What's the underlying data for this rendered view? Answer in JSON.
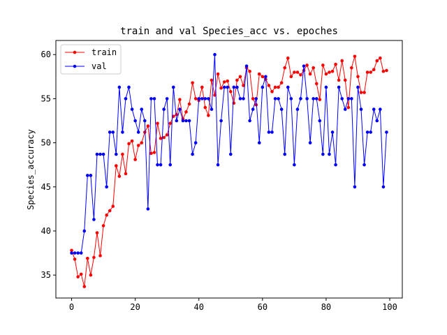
{
  "chart_data": {
    "type": "line",
    "title": "train and val Species_acc vs. epoches",
    "xlabel": "",
    "ylabel": "Species_accuracy",
    "xlim": [
      -4.95,
      103.95
    ],
    "ylim": [
      32.4,
      61.6
    ],
    "xticks": [
      0,
      20,
      40,
      60,
      80,
      100
    ],
    "yticks": [
      35,
      40,
      45,
      50,
      55,
      60
    ],
    "grid": false,
    "legend_position": "top-left",
    "series": [
      {
        "name": "train",
        "color": "#ff0000",
        "marker": "circle",
        "values": [
          37.8,
          36.8,
          34.8,
          35.1,
          33.7,
          36.9,
          35.0,
          37.0,
          39.8,
          37.2,
          40.6,
          41.8,
          42.3,
          42.8,
          47.4,
          46.2,
          48.7,
          46.5,
          49.9,
          50.2,
          48.1,
          49.7,
          50.0,
          51.2,
          51.9,
          48.8,
          48.9,
          52.2,
          50.5,
          50.6,
          50.9,
          52.2,
          53.0,
          53.2,
          54.9,
          52.7,
          53.5,
          54.4,
          56.8,
          55.0,
          54.8,
          56.3,
          54.0,
          53.1,
          57.1,
          55.4,
          57.8,
          56.2,
          56.9,
          57.0,
          55.8,
          54.5,
          57.1,
          57.5,
          56.5,
          58.5,
          58.1,
          55.0,
          54.3,
          57.8,
          57.5,
          57.2,
          56.5,
          55.8,
          56.3,
          56.3,
          56.8,
          58.5,
          59.6,
          57.5,
          58.0,
          58.0,
          57.7,
          58.2,
          58.8,
          57.8,
          58.5,
          56.7,
          54.9,
          58.8,
          57.8,
          58.0,
          58.1,
          58.9,
          57.1,
          59.3,
          57.1,
          54.0,
          58.5,
          59.8,
          57.5,
          55.7,
          55.7,
          58.0,
          58.0,
          58.3,
          59.3,
          59.6,
          58.1,
          58.2
        ]
      },
      {
        "name": "val",
        "color": "#0000ff",
        "marker": "circle",
        "values": [
          37.5,
          37.5,
          37.5,
          37.5,
          40.0,
          46.3,
          46.3,
          41.3,
          48.7,
          48.7,
          48.7,
          45.0,
          51.2,
          51.2,
          48.7,
          56.3,
          51.2,
          55.0,
          56.3,
          53.8,
          52.5,
          51.2,
          53.8,
          52.5,
          42.5,
          55.0,
          55.0,
          47.5,
          47.5,
          53.8,
          55.0,
          47.5,
          56.3,
          52.5,
          53.8,
          52.5,
          52.5,
          52.5,
          48.7,
          50.0,
          55.0,
          55.0,
          55.0,
          55.0,
          53.8,
          60.0,
          47.5,
          52.5,
          56.3,
          56.3,
          48.7,
          56.3,
          56.3,
          55.0,
          55.0,
          58.7,
          52.5,
          53.8,
          55.0,
          50.0,
          56.3,
          57.5,
          51.2,
          51.2,
          55.0,
          55.0,
          53.8,
          48.7,
          56.3,
          55.0,
          47.5,
          53.8,
          55.0,
          58.7,
          55.0,
          50.0,
          55.0,
          55.0,
          52.5,
          48.7,
          56.3,
          48.7,
          51.2,
          47.5,
          56.3,
          55.0,
          53.8,
          55.0,
          55.0,
          45.0,
          56.3,
          53.8,
          47.5,
          51.2,
          51.2,
          53.8,
          52.5,
          53.8,
          45.0,
          51.2
        ]
      }
    ]
  }
}
